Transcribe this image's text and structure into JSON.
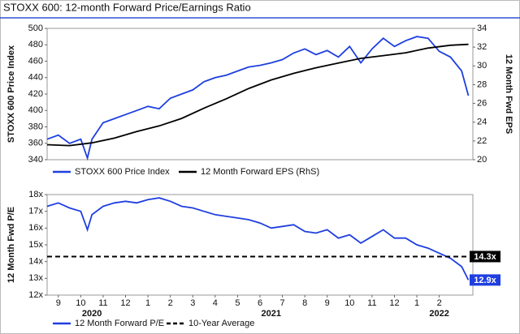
{
  "chart_data": [
    {
      "type": "line",
      "title": "STOXX 600: 12-month Forward Price/Earnings Ratio",
      "ylabel": "STOXX 600 Price Index",
      "y2label": "12 Month Fwd EPS",
      "xlim": [
        0,
        19
      ],
      "ylim": [
        340,
        500
      ],
      "yticks": [
        340,
        360,
        380,
        400,
        420,
        440,
        460,
        480,
        500
      ],
      "y2lim": [
        20,
        34
      ],
      "y2ticks": [
        20,
        22,
        24,
        26,
        28,
        30,
        32,
        34
      ],
      "grid": false,
      "series": [
        {
          "name": "STOXX 600 Price Index",
          "color": "#1f3fe0",
          "x": [
            0,
            0.5,
            1,
            1.5,
            1.8,
            2,
            2.5,
            3,
            3.5,
            4,
            4.5,
            5,
            5.5,
            6,
            6.5,
            7,
            7.5,
            8,
            8.5,
            9,
            9.5,
            10,
            10.5,
            11,
            11.5,
            12,
            12.5,
            13,
            13.5,
            14,
            14.5,
            15,
            15.5,
            16,
            16.5,
            17,
            17.5,
            18,
            18.5,
            18.8
          ],
          "values": [
            365,
            370,
            360,
            365,
            342,
            365,
            385,
            390,
            395,
            400,
            405,
            402,
            415,
            420,
            425,
            435,
            440,
            443,
            448,
            453,
            455,
            458,
            462,
            470,
            475,
            468,
            473,
            465,
            478,
            458,
            475,
            488,
            478,
            485,
            490,
            488,
            472,
            465,
            448,
            418
          ]
        },
        {
          "name": "12 Month Forward EPS (RhS)",
          "color": "#000000",
          "axis": "y2",
          "x": [
            0,
            1,
            2,
            3,
            4,
            5,
            6,
            7,
            8,
            9,
            10,
            11,
            12,
            13,
            14,
            15,
            16,
            17,
            18,
            18.8
          ],
          "values": [
            21.6,
            21.5,
            21.8,
            22.3,
            23,
            23.6,
            24.4,
            25.5,
            26.5,
            27.6,
            28.5,
            29.2,
            29.8,
            30.3,
            30.8,
            31.1,
            31.4,
            31.9,
            32.2,
            32.3
          ]
        }
      ]
    },
    {
      "type": "line",
      "ylabel": "12 Month Fwd P/E",
      "xlim": [
        0,
        19
      ],
      "ylim": [
        12,
        18
      ],
      "yticks": [
        {
          "value": 12,
          "label": "12x"
        },
        {
          "value": 13,
          "label": "13x"
        },
        {
          "value": 14,
          "label": "14x"
        },
        {
          "value": 15,
          "label": "15x"
        },
        {
          "value": 16,
          "label": "16x"
        },
        {
          "value": 17,
          "label": "17x"
        },
        {
          "value": 18,
          "label": "18x"
        }
      ],
      "xticks": [
        {
          "value": 0.5,
          "label": "9"
        },
        {
          "value": 1.5,
          "label": "10"
        },
        {
          "value": 2.5,
          "label": "11"
        },
        {
          "value": 3.5,
          "label": "12"
        },
        {
          "value": 4.5,
          "label": "1"
        },
        {
          "value": 5.5,
          "label": "2"
        },
        {
          "value": 6.5,
          "label": "3"
        },
        {
          "value": 7.5,
          "label": "4"
        },
        {
          "value": 8.5,
          "label": "5"
        },
        {
          "value": 9.5,
          "label": "6"
        },
        {
          "value": 10.5,
          "label": "7"
        },
        {
          "value": 11.5,
          "label": "8"
        },
        {
          "value": 12.5,
          "label": "9"
        },
        {
          "value": 13.5,
          "label": "10"
        },
        {
          "value": 14.5,
          "label": "11"
        },
        {
          "value": 15.5,
          "label": "12"
        },
        {
          "value": 16.5,
          "label": "1"
        },
        {
          "value": 17.5,
          "label": "2"
        }
      ],
      "year_labels": [
        "2020",
        "2021",
        "2022"
      ],
      "grid": false,
      "series": [
        {
          "name": "12 Month Forward P/E",
          "color": "#1f3fe0",
          "x": [
            0,
            0.5,
            1,
            1.5,
            1.8,
            2,
            2.5,
            3,
            3.5,
            4,
            4.5,
            5,
            5.5,
            6,
            6.5,
            7,
            7.5,
            8,
            8.5,
            9,
            9.5,
            10,
            10.5,
            11,
            11.5,
            12,
            12.5,
            13,
            13.5,
            14,
            14.5,
            15,
            15.5,
            16,
            16.5,
            17,
            17.5,
            18,
            18.5,
            18.8
          ],
          "values": [
            17.3,
            17.5,
            17.2,
            17.0,
            15.9,
            16.8,
            17.3,
            17.5,
            17.6,
            17.5,
            17.7,
            17.8,
            17.6,
            17.3,
            17.2,
            17.0,
            16.8,
            16.7,
            16.6,
            16.5,
            16.3,
            16.0,
            16.1,
            16.2,
            15.8,
            15.7,
            15.9,
            15.4,
            15.6,
            15.1,
            15.5,
            15.9,
            15.4,
            15.4,
            15.0,
            14.8,
            14.5,
            14.2,
            13.7,
            12.9
          ],
          "value_labels": [
            null,
            null,
            null,
            null,
            null,
            null,
            null,
            null,
            null,
            null,
            null,
            null,
            null,
            null,
            null,
            null,
            null,
            null,
            null,
            null,
            null,
            null,
            null,
            null,
            null,
            null,
            null,
            null,
            null,
            null,
            null,
            null,
            null,
            null,
            null,
            null,
            null,
            null,
            null,
            "12.9x"
          ]
        },
        {
          "name": "10-Year Average",
          "color": "#000000",
          "kind": "hline",
          "dashed": true,
          "values": [
            14.3
          ],
          "value_labels": [
            "14.3x"
          ]
        }
      ]
    }
  ]
}
